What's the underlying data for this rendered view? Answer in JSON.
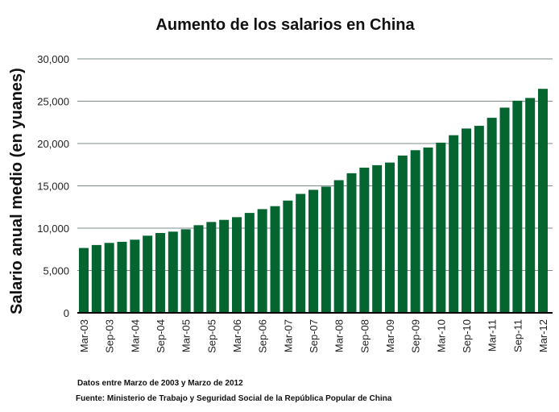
{
  "chart_data": {
    "type": "bar",
    "title": "Aumento de los salarios en China",
    "xlabel": "",
    "ylabel": "Salario anual medio (en yuanes)",
    "ylim": [
      0,
      30000
    ],
    "yticks": [
      "0",
      "5,000",
      "10,000",
      "15,000",
      "20,000",
      "25,000",
      "30,000"
    ],
    "ytick_values": [
      0,
      5000,
      10000,
      15000,
      20000,
      25000,
      30000
    ],
    "grid": true,
    "bar_color": "#056530",
    "categories": [
      "Mar-03",
      "Jun-03",
      "Sep-03",
      "Dec-03",
      "Mar-04",
      "Jun-04",
      "Sep-04",
      "Dec-04",
      "Mar-05",
      "Jun-05",
      "Sep-05",
      "Dec-05",
      "Mar-06",
      "Jun-06",
      "Sep-06",
      "Dec-06",
      "Mar-07",
      "Jun-07",
      "Sep-07",
      "Dec-07",
      "Mar-08",
      "Jun-08",
      "Sep-08",
      "Dec-08",
      "Mar-09",
      "Jun-09",
      "Sep-09",
      "Dec-09",
      "Mar-10",
      "Jun-10",
      "Sep-10",
      "Dec-10",
      "Mar-11",
      "Jun-11",
      "Sep-11",
      "Dec-11",
      "Mar-12"
    ],
    "xtick_labels": [
      "Mar-03",
      "Sep-03",
      "Mar-04",
      "Sep-04",
      "Mar-05",
      "Sep-05",
      "Mar-06",
      "Sep-06",
      "Mar-07",
      "Sep-07",
      "Mar-08",
      "Sep-08",
      "Mar-09",
      "Sep-09",
      "Mar-10",
      "Sep-10",
      "Mar-11",
      "Sep-11",
      "Mar-12"
    ],
    "values": [
      7660,
      8010,
      8260,
      8390,
      8640,
      9110,
      9430,
      9590,
      9870,
      10350,
      10730,
      10980,
      11300,
      11800,
      12250,
      12600,
      13260,
      14050,
      14530,
      14910,
      15670,
      16490,
      17150,
      17440,
      17750,
      18580,
      19210,
      19530,
      20100,
      20980,
      21770,
      22090,
      23040,
      24240,
      25060,
      25380,
      26460
    ],
    "annotations": [
      "Datos entre Marzo de 2003 y Marzo de 2012",
      "Fuente: Ministerio de Trabajo y Seguridad Social de la República Popular de China"
    ]
  }
}
